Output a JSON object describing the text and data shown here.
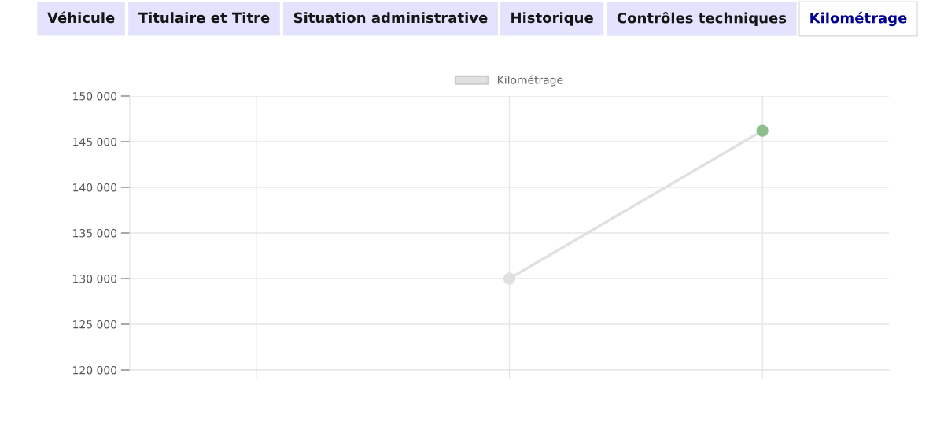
{
  "chart_data": {
    "type": "line",
    "categories": [
      null,
      null,
      null
    ],
    "series": [
      {
        "name": "Kilométrage",
        "color": "#e0e0e0",
        "values": [
          null,
          130000,
          146200
        ],
        "colors": [
          "#e0e0e0",
          "#e0e0e0",
          "#8cbf8c"
        ]
      }
    ],
    "ylim": [
      120000,
      150000
    ],
    "yticks": [
      {
        "value": 120000,
        "label": "120 000"
      },
      {
        "value": 125000,
        "label": "125 000"
      },
      {
        "value": 130000,
        "label": "130 000"
      },
      {
        "value": 135000,
        "label": "135 000"
      },
      {
        "value": 140000,
        "label": "140 000"
      },
      {
        "value": 145000,
        "label": "145 000"
      },
      {
        "value": 150000,
        "label": "150 000"
      }
    ],
    "grid": true,
    "legend": "top",
    "marker": "circle",
    "tick_labels": "y",
    "annotations": [
      "Véhicule",
      "Titulaire et Titre",
      "Situation administrative",
      "Historique",
      "Contrôles techniques",
      "Kilométrage"
    ]
  }
}
